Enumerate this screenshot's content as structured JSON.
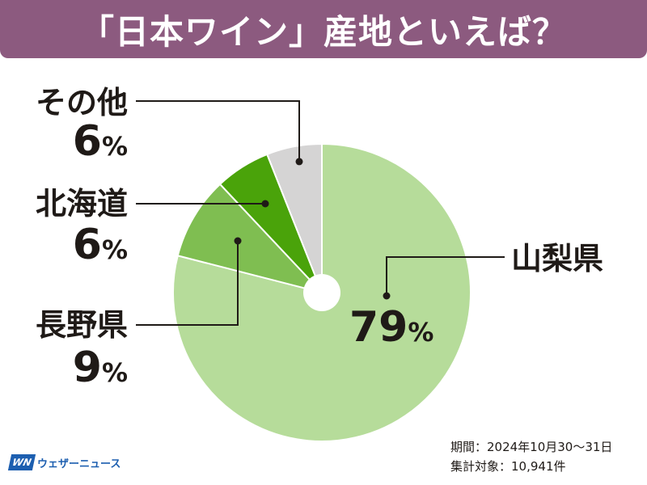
{
  "title": "「日本ワイン」産地といえば？",
  "colors": {
    "banner": "#8c5a7f",
    "slices": [
      "#b6dc9a",
      "#7fbe51",
      "#4aa30a",
      "#d5d4d4"
    ],
    "leader": "#1f1a17"
  },
  "chart_data": {
    "type": "pie",
    "style": "donut with small center hole",
    "labels": [
      "山梨県",
      "長野県",
      "北海道",
      "その他"
    ],
    "values": [
      79,
      9,
      6,
      6
    ],
    "unit": "%"
  },
  "labels": {
    "yamanashi": {
      "name": "山梨県",
      "pct": "79"
    },
    "nagano": {
      "name": "長野県",
      "pct": "9"
    },
    "hokkaido": {
      "name": "北海道",
      "pct": "6"
    },
    "other": {
      "name": "その他",
      "pct": "6"
    },
    "percent_sign": "%"
  },
  "footnote": {
    "period": "期間：2024年10月30〜31日",
    "count": "集計対象：10,941件"
  },
  "brand": {
    "mark": "WN",
    "name": "ウェザーニュース"
  }
}
